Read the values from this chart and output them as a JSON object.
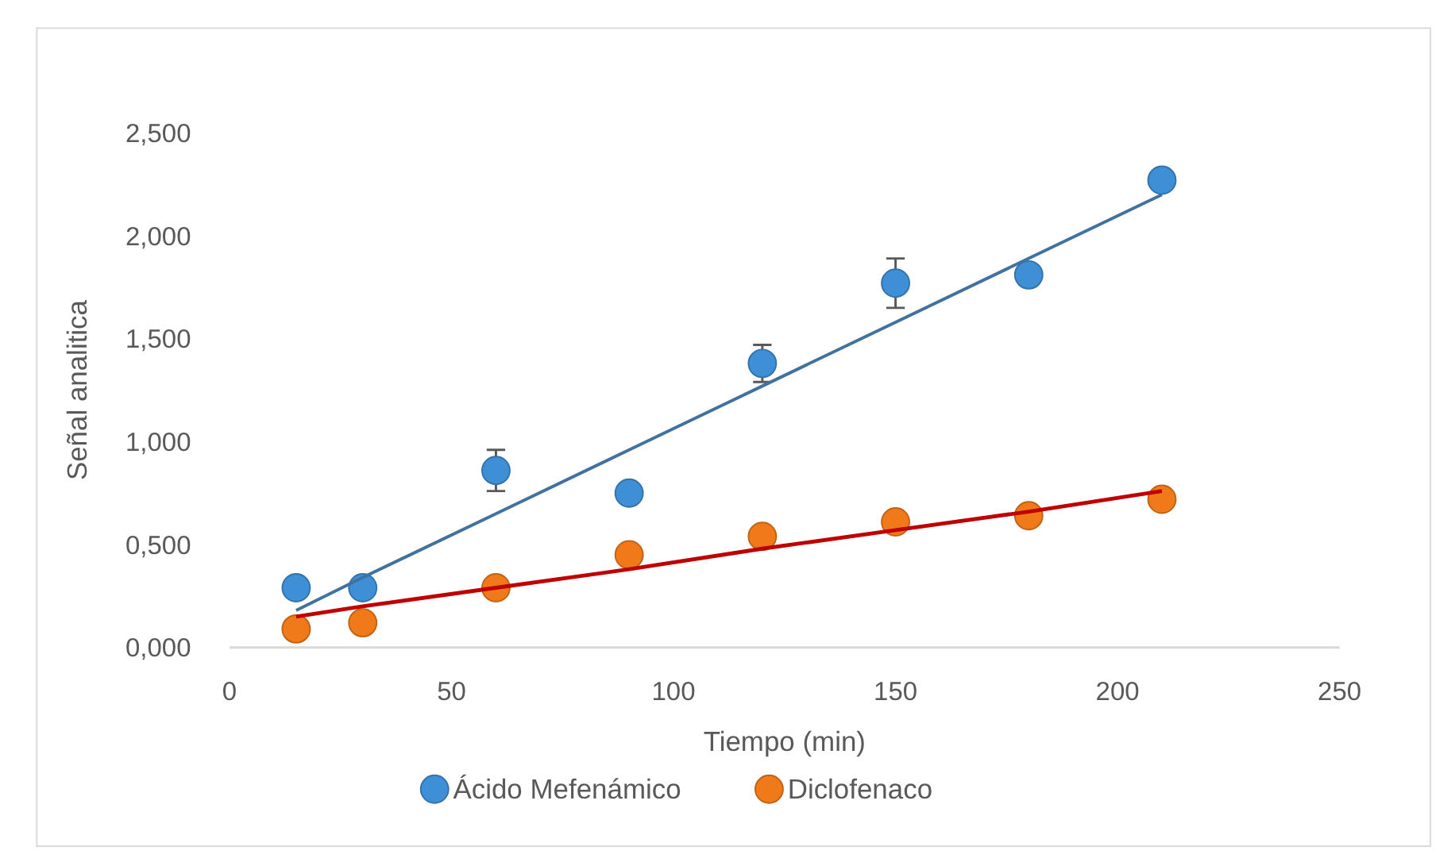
{
  "chart_data": {
    "type": "scatter",
    "xlabel": "Tiempo (min)",
    "ylabel": "Señal analitica",
    "xlim": [
      0,
      250
    ],
    "xticks": [
      0,
      50,
      100,
      150,
      200,
      250
    ],
    "ylim": [
      0,
      2.5
    ],
    "yticks": [
      {
        "value": 0,
        "label": "0,000"
      },
      {
        "value": 0.5,
        "label": "0,500"
      },
      {
        "value": 1,
        "label": "1,000"
      },
      {
        "value": 1.5,
        "label": "1,500"
      },
      {
        "value": 2,
        "label": "2,000"
      },
      {
        "value": 2.5,
        "label": "2,500"
      }
    ],
    "grid": false,
    "legend": "bottom",
    "marker": "circle",
    "x": [
      15,
      30,
      60,
      90,
      120,
      150,
      180,
      210
    ],
    "series": [
      {
        "name": "Ácido Mefenámico",
        "color": "#3f8fd6",
        "values": [
          0.29,
          0.29,
          0.86,
          0.75,
          1.38,
          1.77,
          1.81,
          2.27
        ],
        "errors": [
          null,
          null,
          0.1,
          null,
          0.09,
          0.12,
          null,
          null
        ]
      },
      {
        "name": "Diclofenaco",
        "color": "#f07a1a",
        "values": [
          0.09,
          0.12,
          0.29,
          0.45,
          0.54,
          0.61,
          0.64,
          0.72
        ]
      },
      {
        "type": "line",
        "color": "#41729f",
        "values": [
          0.18,
          0.34,
          0.65,
          0.96,
          1.27,
          1.58,
          1.89,
          2.2
        ],
        "marker": "none",
        "line_style": "solid"
      },
      {
        "type": "line",
        "color": "#c00000",
        "values": [
          0.15,
          0.2,
          0.29,
          0.38,
          0.48,
          0.57,
          0.66,
          0.76
        ],
        "marker": "none",
        "line_style": "solid"
      }
    ]
  }
}
